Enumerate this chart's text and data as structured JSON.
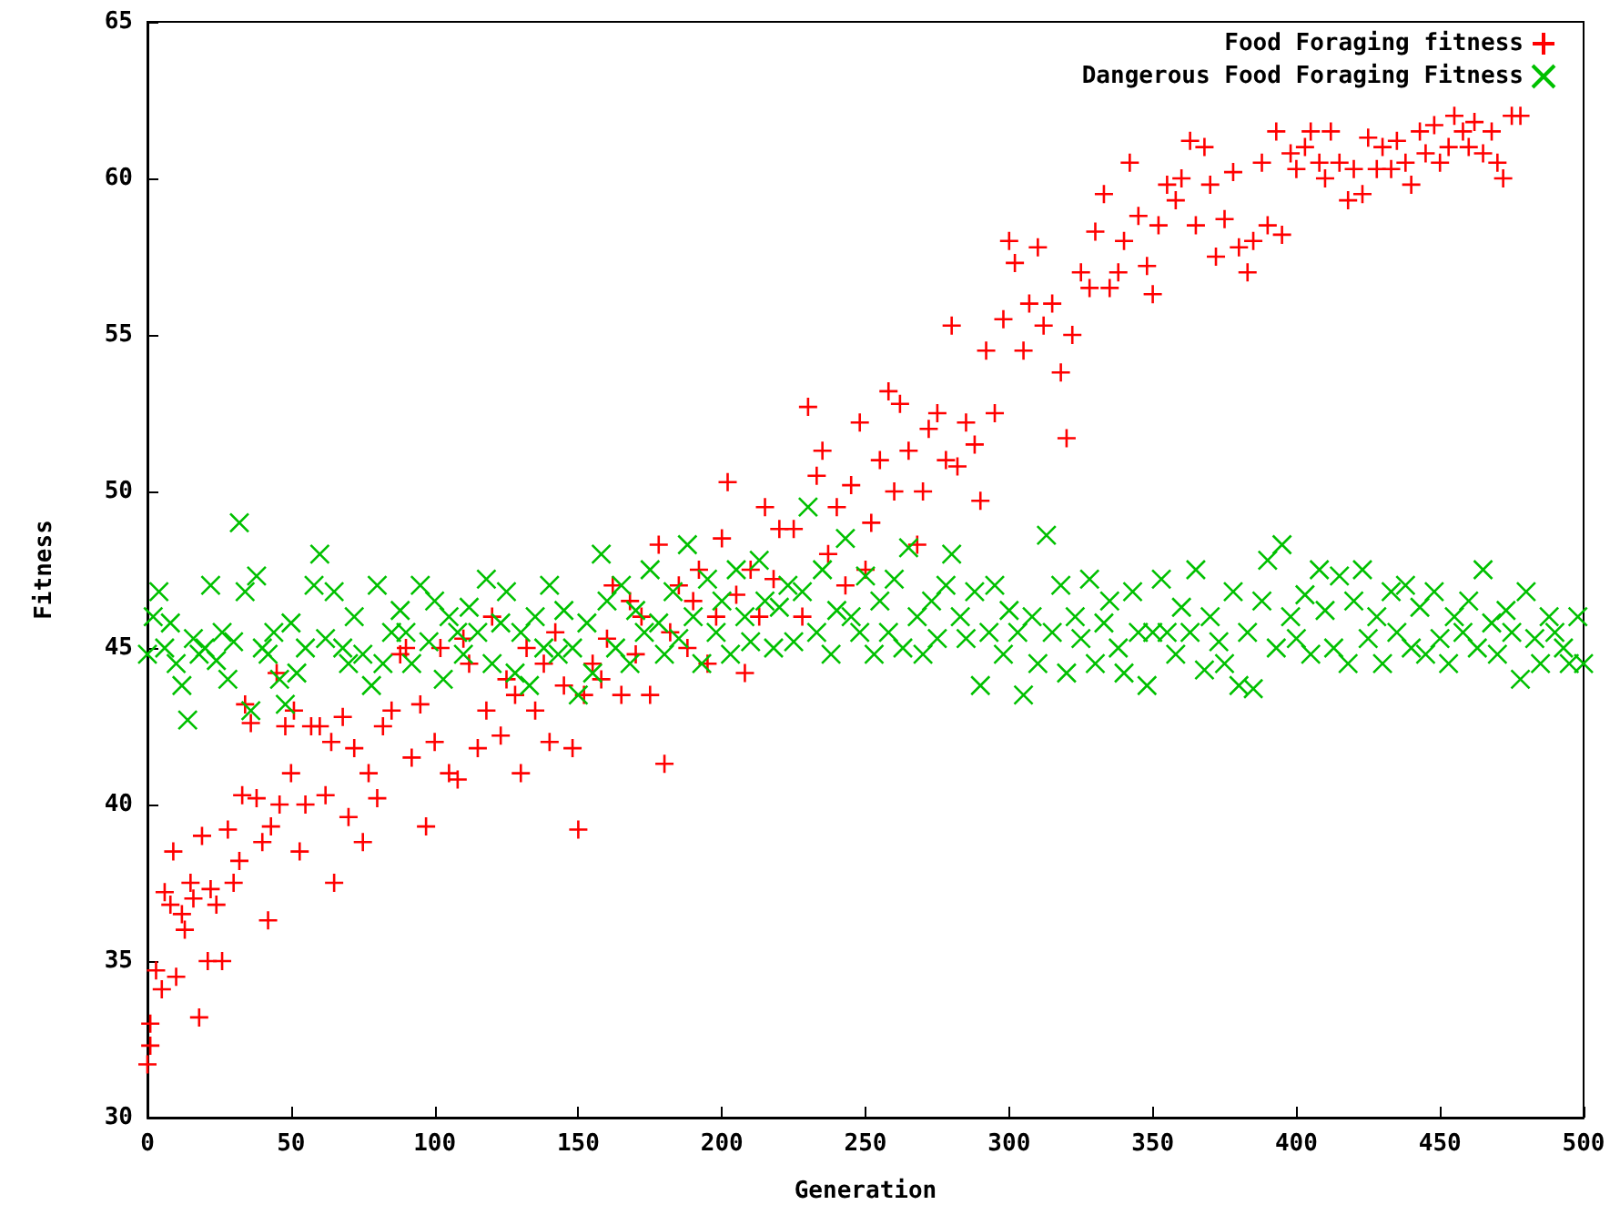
{
  "chart_data": {
    "type": "scatter",
    "xlabel": "Generation",
    "ylabel": "Fitness",
    "xlim": [
      0,
      500
    ],
    "xticks": [
      0,
      50,
      100,
      150,
      200,
      250,
      300,
      350,
      400,
      450,
      500
    ],
    "ylim": [
      30,
      65
    ],
    "yticks": [
      30,
      35,
      40,
      45,
      50,
      55,
      60,
      65
    ],
    "grid": false,
    "legend": "top right",
    "series": [
      {
        "name": "Food Foraging fitness",
        "color": "#ff0000",
        "marker": "plus",
        "x": [
          0,
          1,
          1,
          3,
          5,
          6,
          8,
          9,
          10,
          12,
          13,
          15,
          16,
          18,
          19,
          21,
          22,
          24,
          26,
          28,
          30,
          32,
          33,
          34,
          36,
          38,
          40,
          42,
          43,
          45,
          46,
          48,
          50,
          51,
          53,
          55,
          57,
          60,
          62,
          64,
          65,
          68,
          70,
          72,
          75,
          77,
          80,
          82,
          85,
          88,
          90,
          92,
          95,
          97,
          100,
          102,
          105,
          108,
          110,
          112,
          115,
          118,
          120,
          123,
          125,
          128,
          130,
          132,
          135,
          138,
          140,
          142,
          145,
          148,
          150,
          152,
          155,
          158,
          160,
          162,
          165,
          168,
          170,
          172,
          175,
          178,
          180,
          182,
          185,
          188,
          190,
          192,
          195,
          198,
          200,
          202,
          205,
          208,
          210,
          213,
          215,
          218,
          220,
          225,
          228,
          230,
          233,
          235,
          237,
          240,
          243,
          245,
          248,
          250,
          252,
          255,
          258,
          260,
          262,
          265,
          268,
          270,
          272,
          275,
          278,
          280,
          282,
          285,
          288,
          290,
          292,
          295,
          298,
          300,
          302,
          305,
          307,
          310,
          312,
          315,
          318,
          320,
          322,
          325,
          328,
          330,
          333,
          335,
          338,
          340,
          342,
          345,
          348,
          350,
          352,
          355,
          358,
          360,
          363,
          365,
          368,
          370,
          372,
          375,
          378,
          380,
          383,
          385,
          388,
          390,
          393,
          395,
          398,
          400,
          403,
          405,
          408,
          410,
          412,
          415,
          418,
          420,
          423,
          425,
          428,
          430,
          433,
          435,
          438,
          440,
          443,
          445,
          448,
          450,
          453,
          455,
          458,
          460,
          462,
          465,
          468,
          470,
          472,
          475,
          478
        ],
        "values": [
          31.7,
          32.3,
          33,
          34.7,
          34.1,
          37.2,
          36.8,
          38.5,
          34.5,
          36.5,
          36,
          37.5,
          37,
          33.2,
          39,
          35,
          37.3,
          36.8,
          35,
          39.2,
          37.5,
          38.2,
          40.3,
          43.2,
          42.6,
          40.2,
          38.8,
          36.3,
          39.3,
          44.2,
          40,
          42.5,
          41,
          43,
          38.5,
          40,
          42.5,
          42.5,
          40.3,
          42,
          37.5,
          42.8,
          39.6,
          41.8,
          38.8,
          41,
          40.2,
          42.5,
          43,
          44.8,
          45,
          41.5,
          43.2,
          39.3,
          42,
          45,
          41,
          40.8,
          45.3,
          44.5,
          41.8,
          43,
          46,
          42.2,
          44,
          43.5,
          41,
          45,
          43,
          44.5,
          42,
          45.5,
          43.8,
          41.8,
          39.2,
          43.5,
          44.5,
          44,
          45.3,
          47,
          43.5,
          46.5,
          44.8,
          46,
          43.5,
          48.3,
          41.3,
          45.5,
          47,
          45,
          46.5,
          47.5,
          44.5,
          46,
          48.5,
          50.3,
          46.7,
          44.2,
          47.5,
          46,
          49.5,
          47.2,
          48.8,
          48.8,
          46,
          52.7,
          50.5,
          51.3,
          48,
          49.5,
          47,
          50.2,
          52.2,
          47.5,
          49,
          51,
          53.2,
          50,
          52.8,
          51.3,
          48.3,
          50,
          52,
          52.5,
          51,
          55.3,
          50.8,
          52.2,
          51.5,
          49.7,
          54.5,
          52.5,
          55.5,
          58,
          57.3,
          54.5,
          56,
          57.8,
          55.3,
          56,
          53.8,
          51.7,
          55,
          57,
          56.5,
          58.3,
          59.5,
          56.5,
          57,
          58,
          60.5,
          58.8,
          57.2,
          56.3,
          58.5,
          59.8,
          59.3,
          60,
          61.2,
          58.5,
          61,
          59.8,
          57.5,
          58.7,
          60.2,
          57.8,
          57,
          58,
          60.5,
          58.5,
          61.5,
          58.2,
          60.8,
          60.3,
          61,
          61.5,
          60.5,
          60,
          61.5,
          60.5,
          59.3,
          60.3,
          59.5,
          61.3,
          60.3,
          61,
          60.3,
          61.2,
          60.5,
          59.8,
          61.5,
          60.8,
          61.7,
          60.5,
          61,
          62,
          61.5,
          61,
          61.8,
          60.8,
          61.5,
          60.5,
          60,
          62,
          62
        ]
      },
      {
        "name": "Dangerous Food Foraging Fitness",
        "color": "#00c000",
        "marker": "cross",
        "x": [
          0,
          2,
          4,
          6,
          8,
          10,
          12,
          14,
          16,
          18,
          20,
          22,
          24,
          26,
          28,
          30,
          32,
          34,
          36,
          38,
          40,
          42,
          44,
          46,
          48,
          50,
          52,
          55,
          58,
          60,
          62,
          65,
          68,
          70,
          72,
          75,
          78,
          80,
          82,
          85,
          88,
          90,
          92,
          95,
          98,
          100,
          103,
          105,
          108,
          110,
          112,
          115,
          118,
          120,
          123,
          125,
          128,
          130,
          133,
          135,
          138,
          140,
          143,
          145,
          148,
          150,
          153,
          155,
          158,
          160,
          163,
          165,
          168,
          170,
          173,
          175,
          178,
          180,
          183,
          185,
          188,
          190,
          193,
          195,
          198,
          200,
          203,
          205,
          208,
          210,
          213,
          215,
          218,
          220,
          223,
          225,
          228,
          230,
          233,
          235,
          238,
          240,
          243,
          245,
          248,
          250,
          253,
          255,
          258,
          260,
          263,
          265,
          268,
          270,
          273,
          275,
          278,
          280,
          283,
          285,
          288,
          290,
          293,
          295,
          298,
          300,
          303,
          305,
          308,
          310,
          313,
          315,
          318,
          320,
          323,
          325,
          328,
          330,
          333,
          335,
          338,
          340,
          343,
          345,
          348,
          350,
          353,
          355,
          358,
          360,
          363,
          365,
          368,
          370,
          373,
          375,
          378,
          380,
          383,
          385,
          388,
          390,
          393,
          395,
          398,
          400,
          403,
          405,
          408,
          410,
          413,
          415,
          418,
          420,
          423,
          425,
          428,
          430,
          433,
          435,
          438,
          440,
          443,
          445,
          448,
          450,
          453,
          455,
          458,
          460,
          463,
          465,
          468,
          470,
          473,
          475,
          478,
          480,
          483,
          485,
          488,
          490,
          493,
          495,
          498,
          500
        ],
        "values": [
          44.8,
          46,
          46.8,
          45,
          45.8,
          44.5,
          43.8,
          42.7,
          45.3,
          44.8,
          45,
          47,
          44.6,
          45.5,
          44,
          45.2,
          49,
          46.8,
          43,
          47.3,
          45,
          44.8,
          45.5,
          44,
          43.2,
          45.8,
          44.2,
          45,
          47,
          48,
          45.3,
          46.8,
          45,
          44.5,
          46,
          44.8,
          43.8,
          47,
          44.5,
          45.5,
          46.2,
          45.5,
          44.5,
          47,
          45.2,
          46.5,
          44,
          46,
          45.5,
          44.8,
          46.3,
          45.5,
          47.2,
          44.5,
          45.8,
          46.8,
          44.2,
          45.5,
          43.8,
          46,
          45,
          47,
          44.8,
          46.2,
          45,
          43.5,
          45.8,
          44.2,
          48,
          46.5,
          45,
          47,
          44.5,
          46.2,
          45.5,
          47.5,
          45.8,
          44.8,
          46.8,
          45.3,
          48.3,
          46,
          44.5,
          47.2,
          45.5,
          46.5,
          44.8,
          47.5,
          46,
          45.2,
          47.8,
          46.5,
          45,
          46.3,
          47,
          45.2,
          46.8,
          49.5,
          45.5,
          47.5,
          44.8,
          46.2,
          48.5,
          46,
          45.5,
          47.3,
          44.8,
          46.5,
          45.5,
          47.2,
          45,
          48.2,
          46,
          44.8,
          46.5,
          45.3,
          47,
          48,
          46,
          45.3,
          46.8,
          43.8,
          45.5,
          47,
          44.8,
          46.2,
          45.5,
          43.5,
          46,
          44.5,
          48.6,
          45.5,
          47,
          44.2,
          46,
          45.3,
          47.2,
          44.5,
          45.8,
          46.5,
          45,
          44.2,
          46.8,
          45.5,
          43.8,
          45.5,
          47.2,
          45.5,
          44.8,
          46.3,
          45.5,
          47.5,
          44.3,
          46,
          45.2,
          44.5,
          46.8,
          43.8,
          45.5,
          43.7,
          46.5,
          47.8,
          45,
          48.3,
          46,
          45.3,
          46.7,
          44.8,
          47.5,
          46.2,
          45,
          47.3,
          44.5,
          46.5,
          47.5,
          45.3,
          46,
          44.5,
          46.8,
          45.5,
          47,
          45,
          46.3,
          44.8,
          46.8,
          45.3,
          44.5,
          46,
          45.5,
          46.5,
          45,
          47.5,
          45.8,
          44.8,
          46.2,
          45.5,
          44,
          46.8,
          45.3,
          44.5,
          46,
          45.5,
          45,
          44.5,
          46,
          44.5
        ]
      }
    ]
  }
}
